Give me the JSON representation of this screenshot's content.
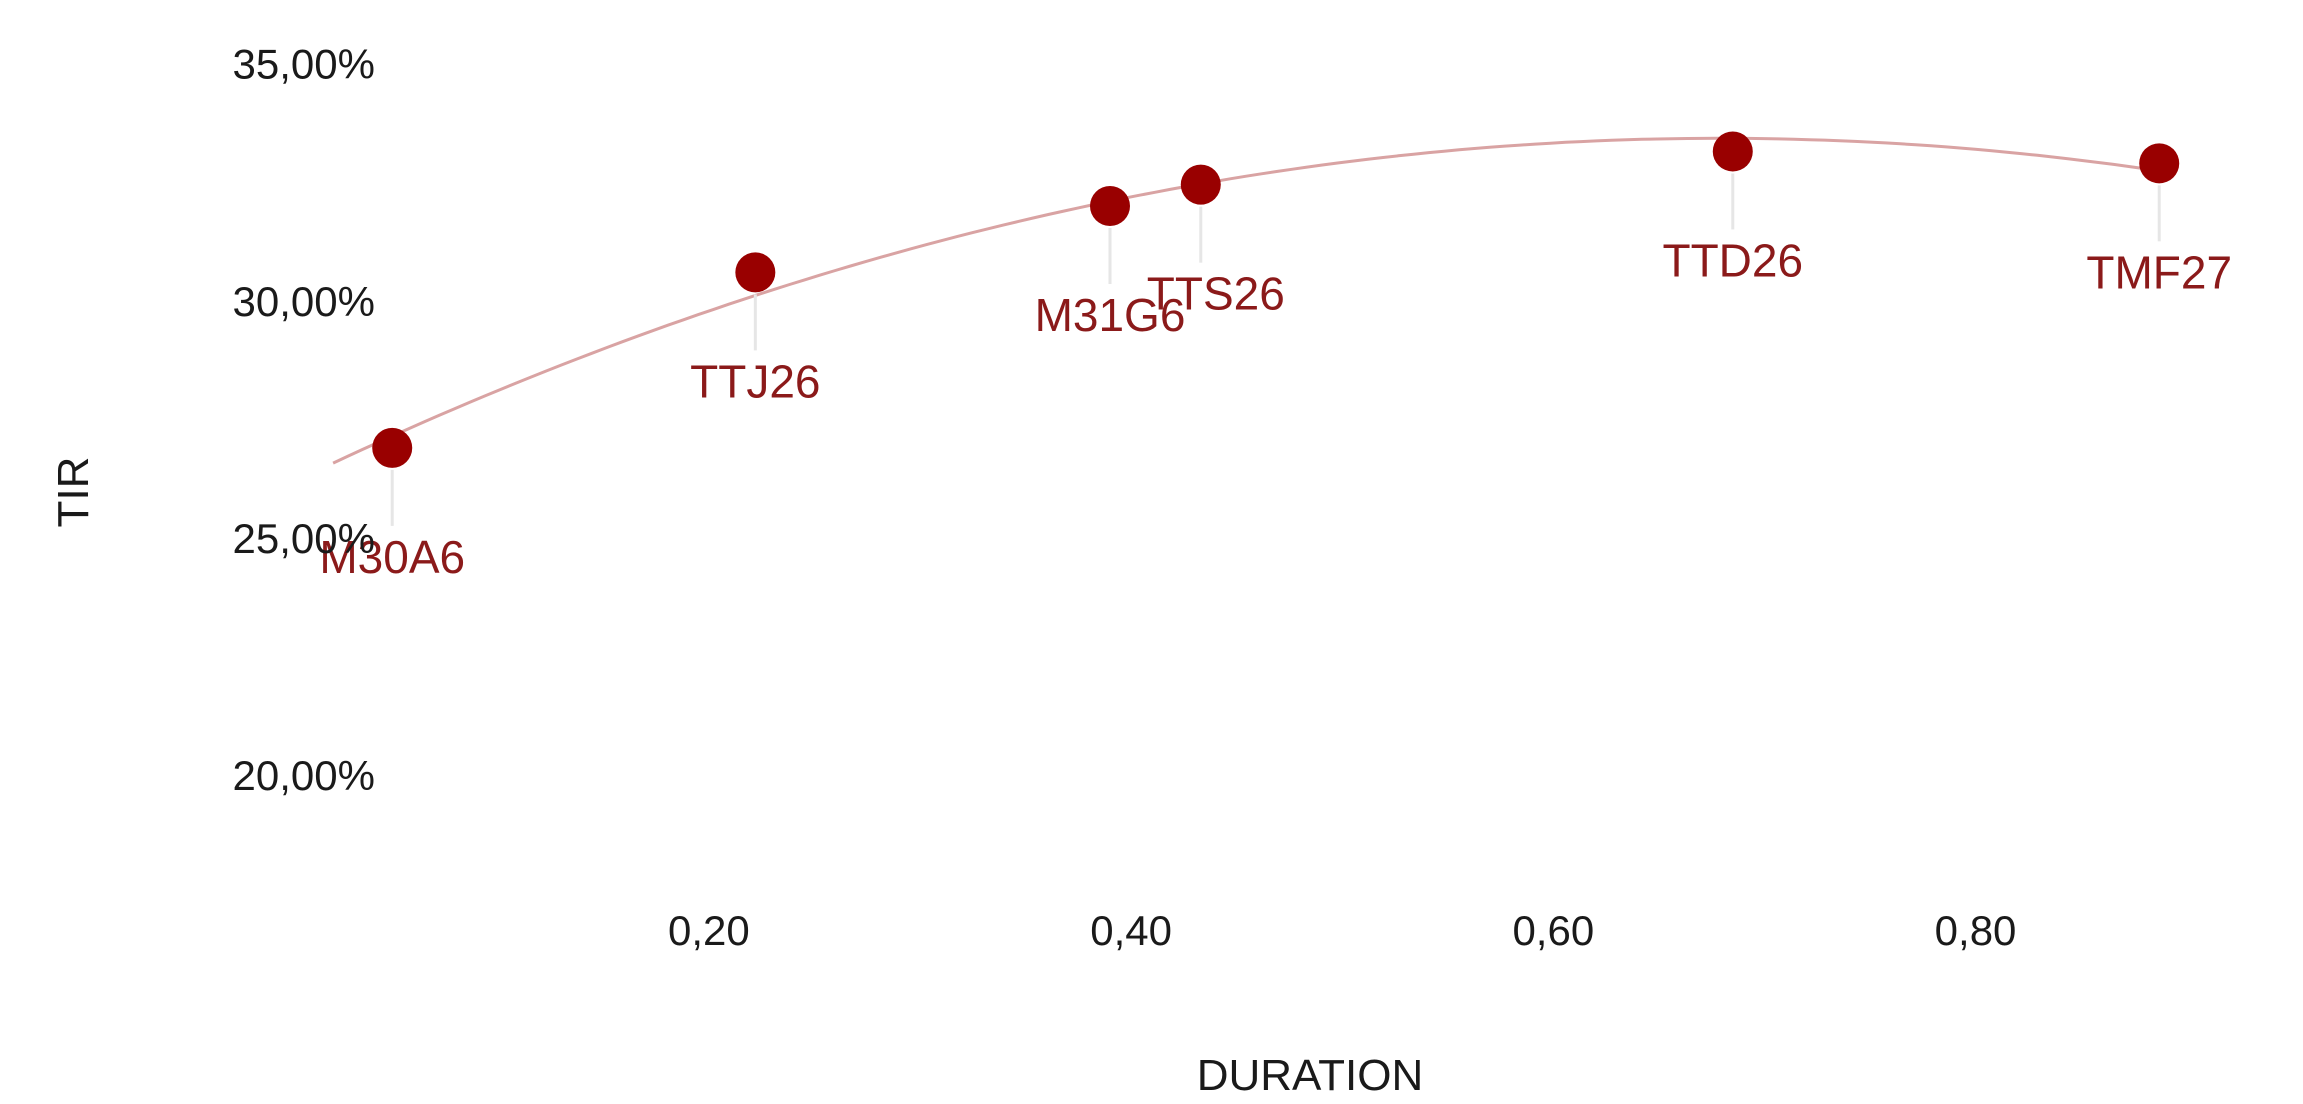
{
  "chart_data": {
    "type": "scatter",
    "title": "",
    "xlabel": "DURATION",
    "ylabel": "TIR",
    "xlim": [
      0.03,
      0.93
    ],
    "ylim": [
      0.18,
      0.355
    ],
    "x_ticks": [
      0.2,
      0.4,
      0.6,
      0.8
    ],
    "x_tick_labels": [
      "0,20",
      "0,40",
      "0,60",
      "0,80"
    ],
    "y_ticks": [
      0.2,
      0.25,
      0.3,
      0.35
    ],
    "y_tick_labels": [
      "20,00%",
      "25,00%",
      "30,00%",
      "35,00%"
    ],
    "grid": false,
    "legend": "none",
    "colors": {
      "point": "#990000",
      "label": "#8b1a1a",
      "trend": "#d9a3a3",
      "leader": "#e6e6e6",
      "text": "#1a1a1a"
    },
    "points": [
      {
        "label": "M30A6",
        "x": 0.05,
        "y": 0.269
      },
      {
        "label": "TTJ26",
        "x": 0.222,
        "y": 0.306
      },
      {
        "label": "M31G6",
        "x": 0.39,
        "y": 0.32
      },
      {
        "label": "TTS26",
        "x": 0.433,
        "y": 0.3245
      },
      {
        "label": "TTD26",
        "x": 0.685,
        "y": 0.3315
      },
      {
        "label": "TMF27",
        "x": 0.887,
        "y": 0.329
      }
    ],
    "trendline": {
      "type": "polynomial",
      "degree": 2
    }
  }
}
